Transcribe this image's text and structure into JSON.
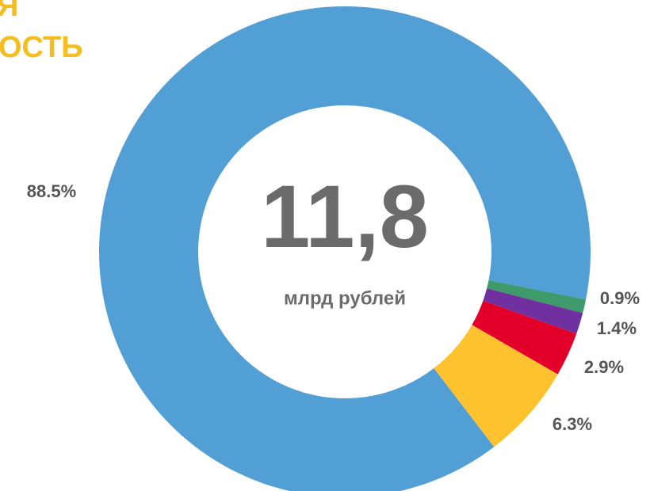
{
  "chart_data": {
    "type": "donut",
    "title_lines": [
      "Я",
      "ОСТЬ"
    ],
    "center_value": "11,8",
    "center_label": "млрд рублей",
    "values": [
      88.5,
      0.9,
      1.4,
      2.9,
      6.3
    ],
    "value_labels": [
      "88.5%",
      "0.9%",
      "1.4%",
      "2.9%",
      "6.3%"
    ],
    "colors": [
      "#529fd6",
      "#3e9a6b",
      "#7030a0",
      "#e2002b",
      "#fec22f"
    ]
  }
}
